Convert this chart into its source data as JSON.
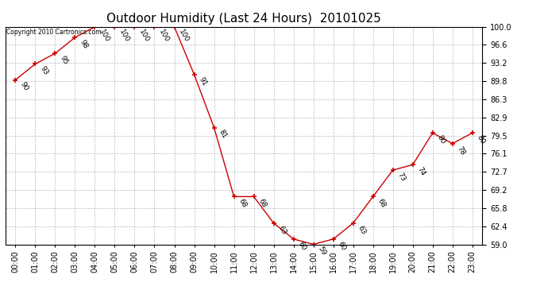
{
  "title": "Outdoor Humidity (Last 24 Hours)  20101025",
  "copyright": "Copyright 2010 Cartronics.com",
  "x_labels": [
    "00:00",
    "01:00",
    "02:00",
    "03:00",
    "04:00",
    "05:00",
    "06:00",
    "07:00",
    "08:00",
    "09:00",
    "10:00",
    "11:00",
    "12:00",
    "13:00",
    "14:00",
    "15:00",
    "16:00",
    "17:00",
    "18:00",
    "19:00",
    "20:00",
    "21:00",
    "22:00",
    "23:00"
  ],
  "y_values": [
    90,
    93,
    95,
    98,
    100,
    100,
    100,
    100,
    100,
    91,
    81,
    68,
    68,
    63,
    60,
    59,
    60,
    63,
    68,
    73,
    74,
    80,
    78,
    80
  ],
  "ylim": [
    59.0,
    100.0
  ],
  "y_ticks": [
    59.0,
    62.4,
    65.8,
    69.2,
    72.7,
    76.1,
    79.5,
    82.9,
    86.3,
    89.8,
    93.2,
    96.6,
    100.0
  ],
  "line_color": "#cc0000",
  "marker_color": "#cc0000",
  "bg_color": "#ffffff",
  "grid_color": "#bbbbbb",
  "title_fontsize": 11,
  "label_fontsize": 7,
  "annot_fontsize": 6.5
}
